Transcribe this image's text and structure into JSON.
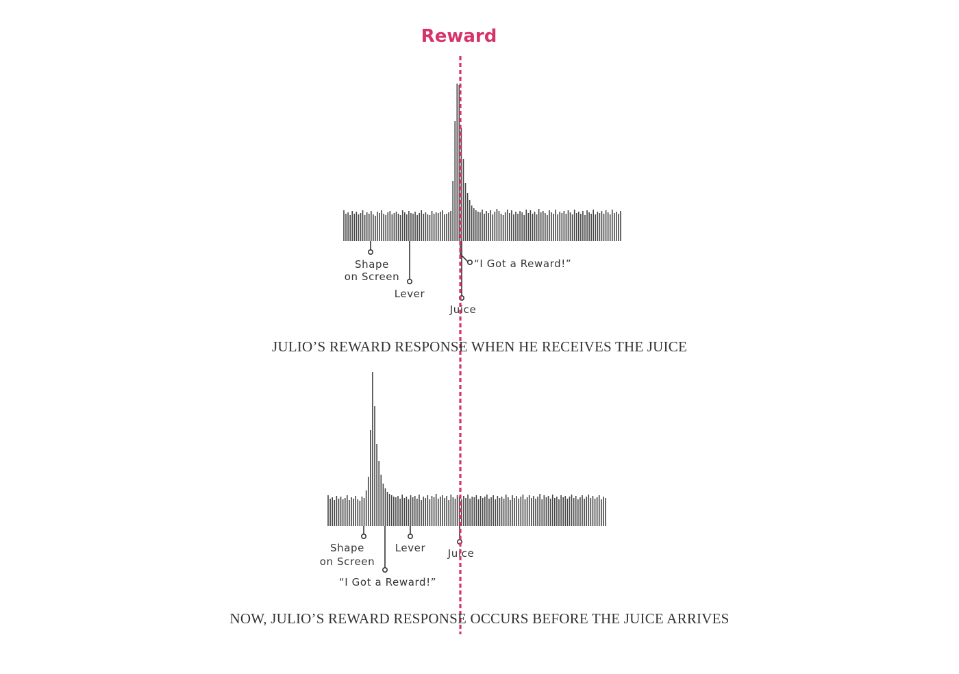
{
  "marker": {
    "label": "Reward",
    "color": "#d6336c"
  },
  "chart_data": [
    {
      "type": "bar",
      "caption": "JULIO’S REWARD RESPONSE WHEN HE RECEIVES THE JUICE",
      "bar_color": "#444444",
      "values": [
        45,
        40,
        42,
        38,
        44,
        40,
        43,
        39,
        41,
        45,
        38,
        42,
        40,
        44,
        39,
        37,
        43,
        41,
        45,
        40,
        38,
        42,
        44,
        39,
        41,
        43,
        40,
        38,
        45,
        42,
        39,
        44,
        41,
        40,
        43,
        38,
        41,
        45,
        40,
        42,
        39,
        38,
        44,
        40,
        42,
        41,
        43,
        45,
        39,
        40,
        42,
        44,
        88,
        175,
        230,
        228,
        165,
        120,
        85,
        70,
        60,
        52,
        48,
        45,
        43,
        42,
        46,
        40,
        44,
        41,
        45,
        39,
        43,
        47,
        44,
        40,
        38,
        42,
        46,
        41,
        45,
        39,
        43,
        40,
        44,
        42,
        38,
        46,
        41,
        45,
        40,
        43,
        39,
        47,
        42,
        44,
        41,
        38,
        45,
        42,
        40,
        46,
        39,
        43,
        41,
        44,
        40,
        45,
        42,
        39,
        46,
        41,
        43,
        40,
        44,
        38,
        45,
        42,
        40,
        46,
        39,
        43,
        41,
        44,
        40,
        45,
        42,
        39,
        46,
        41,
        43,
        40,
        44
      ],
      "events": [
        {
          "label_lines": [
            "Shape",
            "on Screen"
          ]
        },
        {
          "label_lines": [
            "Lever"
          ]
        },
        {
          "label_lines": [
            "“I Got a Reward!”"
          ]
        },
        {
          "label_lines": [
            "Juice"
          ]
        }
      ]
    },
    {
      "type": "bar",
      "caption": "NOW, JULIO’S REWARD RESPONSE OCCURS BEFORE THE JUICE ARRIVES",
      "bar_color": "#444444",
      "values": [
        45,
        40,
        42,
        38,
        44,
        40,
        43,
        39,
        41,
        45,
        38,
        42,
        40,
        44,
        39,
        37,
        43,
        41,
        52,
        72,
        140,
        225,
        175,
        120,
        95,
        75,
        62,
        55,
        50,
        47,
        45,
        43,
        42,
        44,
        40,
        46,
        41,
        43,
        39,
        45,
        42,
        44,
        40,
        46,
        38,
        43,
        41,
        45,
        39,
        44,
        42,
        47,
        40,
        43,
        45,
        41,
        44,
        38,
        46,
        42,
        40,
        45,
        43,
        39,
        44,
        41,
        46,
        40,
        43,
        42,
        45,
        39,
        44,
        41,
        43,
        46,
        40,
        42,
        45,
        39,
        44,
        41,
        43,
        40,
        46,
        42,
        38,
        45,
        41,
        44,
        40,
        43,
        46,
        39,
        42,
        45,
        41,
        44,
        40,
        43,
        47,
        39,
        45,
        42,
        44,
        40,
        46,
        41,
        43,
        39,
        45,
        42,
        44,
        40,
        43,
        46,
        41,
        44,
        39,
        42,
        45,
        40,
        43,
        46,
        41,
        44,
        40,
        42,
        45,
        39,
        43,
        41
      ],
      "events": [
        {
          "label_lines": [
            "Shape",
            "on Screen"
          ]
        },
        {
          "label_lines": [
            "Lever"
          ]
        },
        {
          "label_lines": [
            "Juice"
          ]
        },
        {
          "label_lines": [
            "“I Got a Reward!”"
          ]
        }
      ]
    }
  ]
}
